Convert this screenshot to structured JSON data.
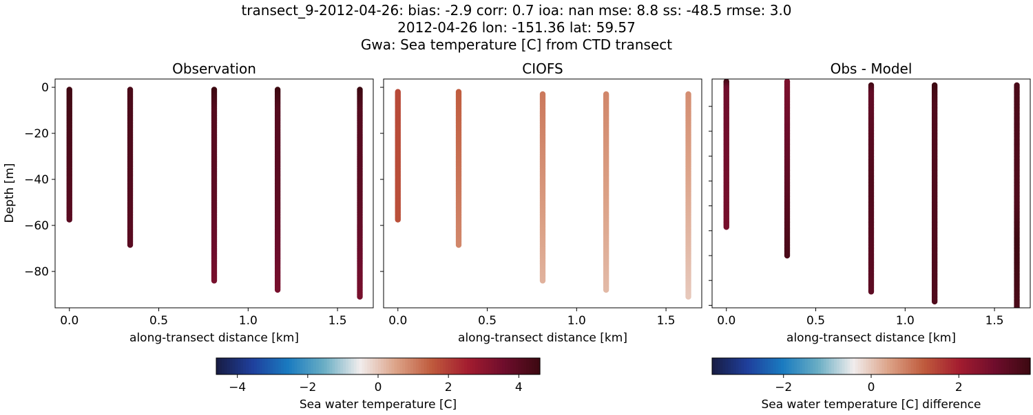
{
  "figure": {
    "title_lines": [
      "transect_9-2012-04-26: bias: -2.9  corr: 0.7  ioa: nan  mse: 8.8  ss: -48.5  rmse: 3.0",
      "2012-04-26 lon: -151.36 lat: 59.57",
      "Gwa: Sea temperature [C] from CTD transect"
    ]
  },
  "chart_data": [
    {
      "type": "scatter",
      "title": "Observation",
      "xlabel": "along-transect distance [km]",
      "ylabel": "Depth [m]",
      "xlim": [
        -0.08,
        1.7
      ],
      "ylim": [
        -95.8,
        3.6
      ],
      "xticks": [
        0.0,
        0.5,
        1.0,
        1.5
      ],
      "xtick_labels": [
        "0.0",
        "0.5",
        "1.0",
        "1.5"
      ],
      "yticks": [
        0,
        -20,
        -40,
        -60,
        -80
      ],
      "ytick_labels": [
        "0",
        "−20",
        "−40",
        "−60",
        "−80"
      ],
      "colormap": "balance",
      "clim": [
        -4.6,
        4.6
      ],
      "profiles": [
        {
          "x": 0.0,
          "depth_value": [
            [
              -1,
              4.5
            ],
            [
              -57.5,
              4.0
            ]
          ]
        },
        {
          "x": 0.34,
          "depth_value": [
            [
              -1,
              4.3
            ],
            [
              -68.5,
              4.0
            ]
          ]
        },
        {
          "x": 0.81,
          "depth_value": [
            [
              -1,
              4.6
            ],
            [
              -10,
              4.1
            ],
            [
              -50,
              3.9
            ],
            [
              -84,
              3.4
            ]
          ]
        },
        {
          "x": 1.165,
          "depth_value": [
            [
              -1,
              4.6
            ],
            [
              -10,
              4.1
            ],
            [
              -50,
              3.9
            ],
            [
              -88,
              3.4
            ]
          ]
        },
        {
          "x": 1.625,
          "depth_value": [
            [
              -1,
              4.6
            ],
            [
              -10,
              4.1
            ],
            [
              -50,
              3.9
            ],
            [
              -91,
              3.4
            ]
          ]
        }
      ]
    },
    {
      "type": "scatter",
      "title": "CIOFS",
      "xlabel": "along-transect distance [km]",
      "xlim": [
        -0.08,
        1.7
      ],
      "ylim": [
        -95.8,
        3.6
      ],
      "xticks": [
        0.0,
        0.5,
        1.0,
        1.5
      ],
      "xtick_labels": [
        "0.0",
        "0.5",
        "1.0",
        "1.5"
      ],
      "yticks": [
        0,
        -20,
        -40,
        -60,
        -80
      ],
      "colormap": "balance",
      "clim": [
        -4.6,
        4.6
      ],
      "profiles": [
        {
          "x": 0.0,
          "depth_value": [
            [
              -2,
              1.8
            ],
            [
              -57.5,
              1.7
            ]
          ]
        },
        {
          "x": 0.34,
          "depth_value": [
            [
              -2,
              1.5
            ],
            [
              -68.5,
              0.9
            ]
          ]
        },
        {
          "x": 0.81,
          "depth_value": [
            [
              -3,
              1.1
            ],
            [
              -84,
              0.3
            ]
          ]
        },
        {
          "x": 1.165,
          "depth_value": [
            [
              -3,
              0.9
            ],
            [
              -88,
              0.2
            ]
          ]
        },
        {
          "x": 1.625,
          "depth_value": [
            [
              -3,
              0.8
            ],
            [
              -91,
              0.0
            ]
          ]
        }
      ]
    },
    {
      "type": "scatter",
      "title": "Obs - Model",
      "xlabel": "along-transect distance [km]",
      "xlim": [
        -0.08,
        1.7
      ],
      "ylim": [
        -91,
        1
      ],
      "xticks": [
        0.0,
        0.5,
        1.0,
        1.5
      ],
      "xtick_labels": [
        "0.0",
        "0.5",
        "1.0",
        "1.5"
      ],
      "yticks": [
        -10,
        -20,
        -30,
        -40,
        -50,
        -60,
        -70,
        -80,
        -90
      ],
      "colormap": "balance",
      "clim": [
        -3.63,
        3.63
      ],
      "profiles": [
        {
          "x": 0.0,
          "depth_value": [
            [
              0,
              3.5
            ],
            [
              -3,
              2.8
            ],
            [
              -58.5,
              2.7
            ]
          ]
        },
        {
          "x": 0.34,
          "depth_value": [
            [
              0,
              2.6
            ],
            [
              -35,
              3.0
            ],
            [
              -70,
              3.4
            ]
          ]
        },
        {
          "x": 0.81,
          "depth_value": [
            [
              -1.5,
              3.5
            ],
            [
              -5,
              3.0
            ],
            [
              -40,
              3.3
            ],
            [
              -84.5,
              3.1
            ]
          ]
        },
        {
          "x": 1.165,
          "depth_value": [
            [
              -1.5,
              3.6
            ],
            [
              -10,
              3.3
            ],
            [
              -88.5,
              3.3
            ]
          ]
        },
        {
          "x": 1.625,
          "depth_value": [
            [
              -1.5,
              3.4
            ],
            [
              -50,
              3.3
            ],
            [
              -65,
              3.6
            ],
            [
              -91,
              3.4
            ]
          ]
        }
      ]
    }
  ],
  "colorbars": [
    {
      "label": "Sea water temperature [C]",
      "range": [
        -4.6,
        4.6
      ],
      "ticks": [
        -4,
        -2,
        0,
        2,
        4
      ],
      "tick_labels": [
        "−4",
        "−2",
        "0",
        "2",
        "4"
      ]
    },
    {
      "label": "Sea water temperature [C] difference",
      "range": [
        -3.63,
        3.63
      ],
      "ticks": [
        -2,
        0,
        2
      ],
      "tick_labels": [
        "−2",
        "0",
        "2"
      ]
    }
  ],
  "colormap_stops": [
    "#181c43",
    "#1f3f9c",
    "#1a7bc0",
    "#6aaec4",
    "#f1eded",
    "#dca287",
    "#bf5a3c",
    "#a31c2f",
    "#6e0d2c",
    "#3c0911"
  ]
}
